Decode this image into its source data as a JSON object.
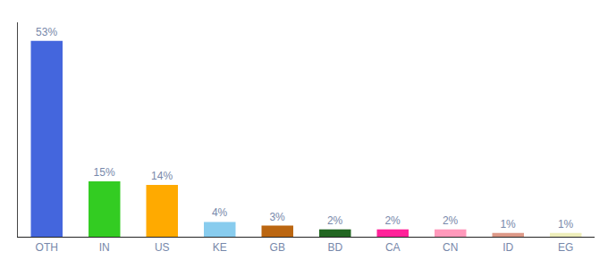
{
  "chart_data": {
    "type": "bar",
    "categories": [
      "OTH",
      "IN",
      "US",
      "KE",
      "GB",
      "BD",
      "CA",
      "CN",
      "ID",
      "EG"
    ],
    "values": [
      53,
      15,
      14,
      4,
      3,
      2,
      2,
      2,
      1,
      1
    ],
    "value_labels": [
      "53%",
      "15%",
      "14%",
      "4%",
      "3%",
      "2%",
      "2%",
      "2%",
      "1%",
      "1%"
    ],
    "colors": [
      "#4466dd",
      "#33cc22",
      "#ffaa00",
      "#88ccee",
      "#bb6611",
      "#226622",
      "#ff2299",
      "#ff99bb",
      "#dd9988",
      "#eeeebb"
    ],
    "ylim": [
      0,
      58
    ],
    "grid": false,
    "data_labels": true,
    "tick_labels": "x"
  }
}
